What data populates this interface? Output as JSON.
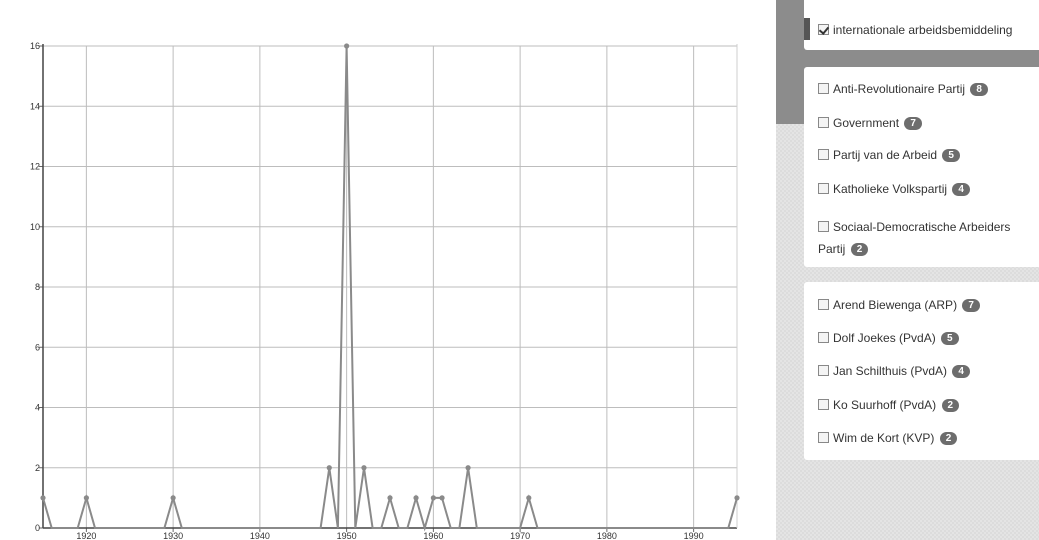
{
  "chart_data": {
    "type": "line",
    "x": [
      1915,
      1920,
      1930,
      1948,
      1950,
      1952,
      1955,
      1958,
      1960,
      1961,
      1964,
      1971,
      1995
    ],
    "y": [
      1,
      1,
      1,
      2,
      16,
      2,
      1,
      1,
      1,
      1,
      2,
      1,
      1
    ],
    "xlim": [
      1915,
      1995
    ],
    "ylim": [
      0,
      16
    ],
    "xticks": [
      "1920",
      "1930",
      "1940",
      "1950",
      "1960",
      "1970",
      "1980",
      "1990"
    ],
    "yticks": [
      "0",
      "2",
      "4",
      "6",
      "8",
      "10",
      "12",
      "14",
      "16"
    ],
    "grid": true,
    "line_color": "#8a8a8a"
  },
  "sidebar": {
    "topic": {
      "label": "internationale arbeidsbemiddeling",
      "checked": true
    },
    "parties": [
      {
        "label": "Anti-Revolutionaire Partij",
        "count": "8"
      },
      {
        "label": "Government",
        "count": "7"
      },
      {
        "label": "Partij van de Arbeid",
        "count": "5"
      },
      {
        "label": "Katholieke Volkspartij",
        "count": "4"
      },
      {
        "label": "Sociaal-Democratische Arbeiders",
        "label2": "Partij",
        "count": "2"
      }
    ],
    "persons": [
      {
        "label": "Arend Biewenga (ARP)",
        "count": "7"
      },
      {
        "label": "Dolf Joekes (PvdA)",
        "count": "5"
      },
      {
        "label": "Jan Schilthuis (PvdA)",
        "count": "4"
      },
      {
        "label": "Ko Suurhoff (PvdA)",
        "count": "2"
      },
      {
        "label": "Wim de Kort (KVP)",
        "count": "2"
      }
    ]
  }
}
